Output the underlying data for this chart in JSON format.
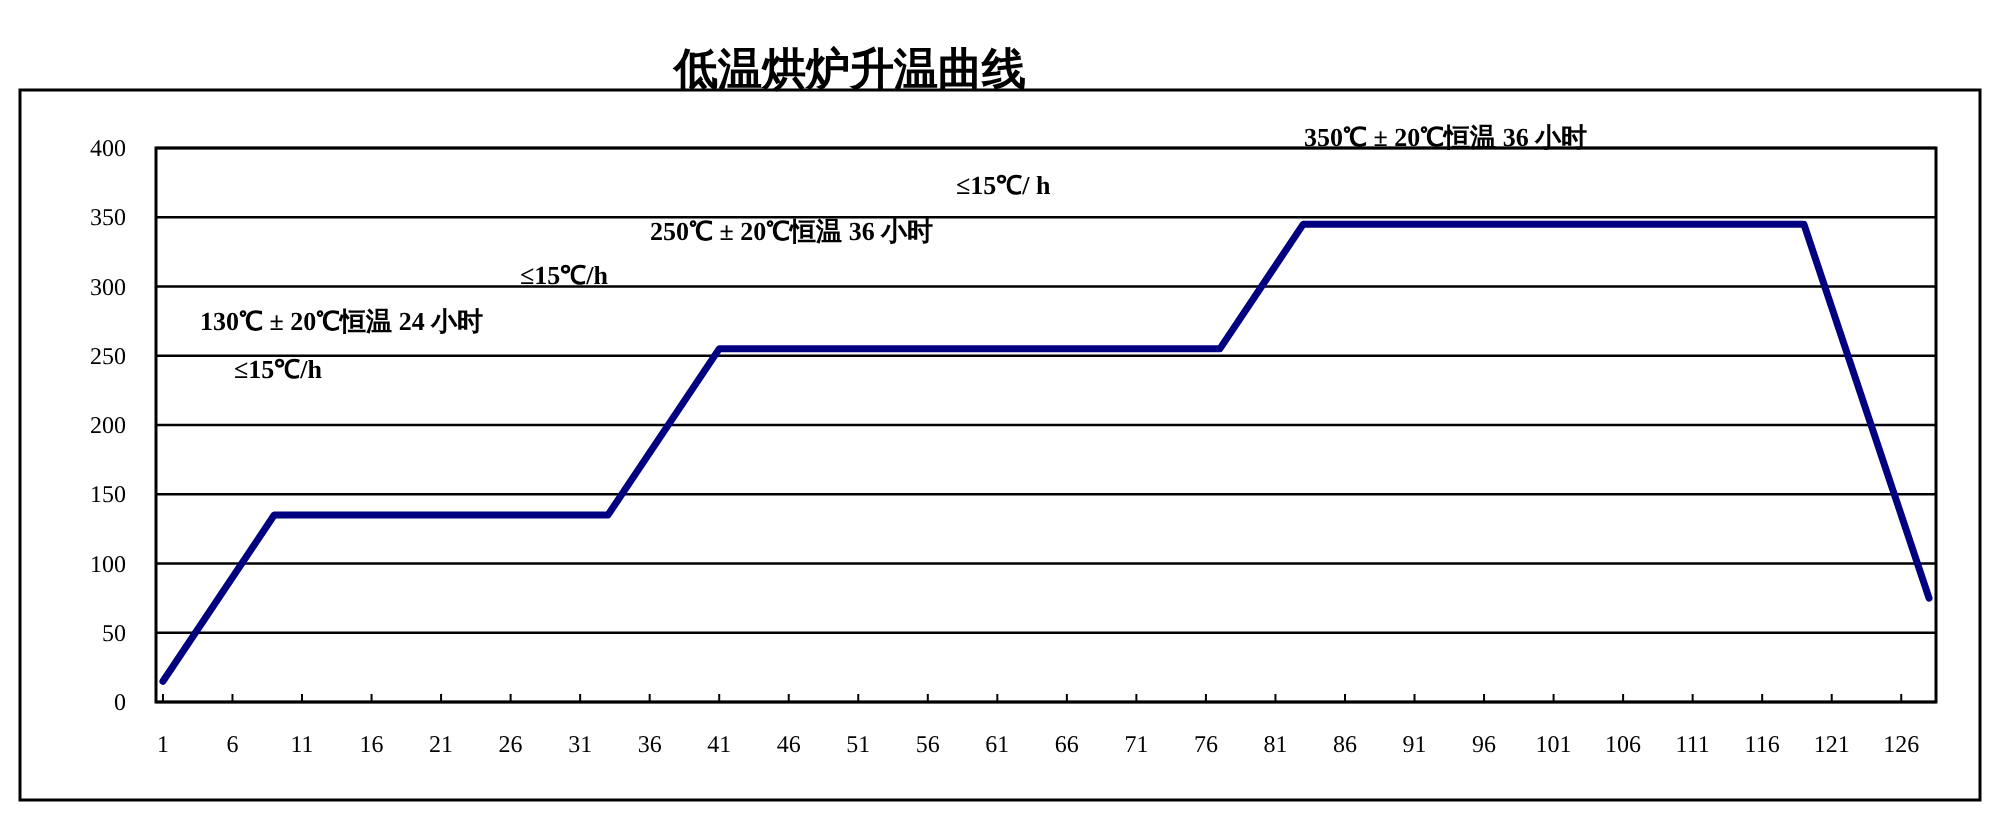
{
  "chart_data": {
    "type": "line",
    "title": "低温烘炉升温曲线",
    "series": [
      {
        "color": "#000080",
        "x": [
          1,
          9,
          33,
          41,
          77,
          83,
          119,
          128
        ],
        "values": [
          15,
          135,
          135,
          255,
          255,
          345,
          345,
          75
        ]
      }
    ],
    "xlim": [
      0.5,
      128.5
    ],
    "xticks": [
      1,
      6,
      11,
      16,
      21,
      26,
      31,
      36,
      41,
      46,
      51,
      56,
      61,
      66,
      71,
      76,
      81,
      86,
      91,
      96,
      101,
      106,
      111,
      116,
      121,
      126
    ],
    "ylim": [
      0,
      400
    ],
    "yticks": [
      0,
      50,
      100,
      150,
      200,
      250,
      300,
      350,
      400
    ],
    "grid": "y",
    "marker": "none",
    "line_style": "solid",
    "annotations": [
      "350℃ ± 20℃恒温 36 小时",
      "≤15℃/  h",
      "250℃ ± 20℃恒温 36 小时",
      "≤15℃/h",
      "130℃ ± 20℃恒温 24 小时",
      "≤15℃/h"
    ]
  }
}
